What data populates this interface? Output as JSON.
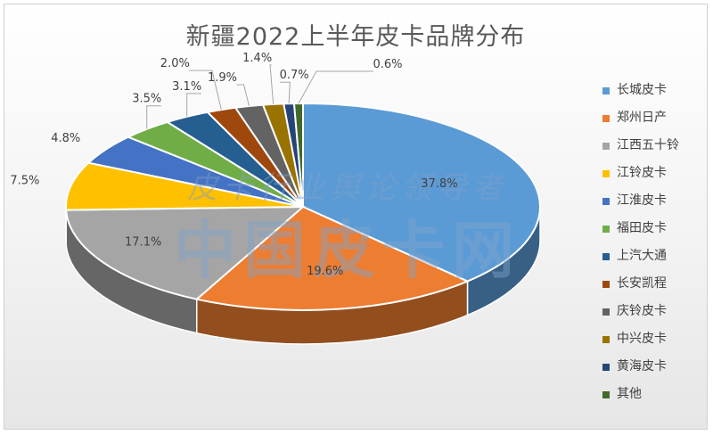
{
  "chart_data": {
    "type": "pie",
    "title": "新疆2022上半年皮卡品牌分布",
    "legend_position": "right",
    "series": [
      {
        "name": "长城皮卡",
        "value": 37.8,
        "label": "37.8%",
        "color": "#5b9bd5"
      },
      {
        "name": "郑州日产",
        "value": 19.6,
        "label": "19.6%",
        "color": "#ed7d31"
      },
      {
        "name": "江西五十铃",
        "value": 17.1,
        "label": "17.1%",
        "color": "#a5a5a5"
      },
      {
        "name": "江铃皮卡",
        "value": 7.5,
        "label": "7.5%",
        "color": "#ffc000"
      },
      {
        "name": "江淮皮卡",
        "value": 4.8,
        "label": "4.8%",
        "color": "#4472c4"
      },
      {
        "name": "福田皮卡",
        "value": 3.5,
        "label": "3.5%",
        "color": "#70ad47"
      },
      {
        "name": "上汽大通",
        "value": 3.1,
        "label": "3.1%",
        "color": "#255e91"
      },
      {
        "name": "长安凯程",
        "value": 2.0,
        "label": "2.0%",
        "color": "#9e480e"
      },
      {
        "name": "庆铃皮卡",
        "value": 1.9,
        "label": "1.9%",
        "color": "#636363"
      },
      {
        "name": "中兴皮卡",
        "value": 1.4,
        "label": "1.4%",
        "color": "#997300"
      },
      {
        "name": "黄海皮卡",
        "value": 0.7,
        "label": "0.7%",
        "color": "#264478"
      },
      {
        "name": "其他",
        "value": 0.6,
        "label": "0.6%",
        "color": "#43682b"
      }
    ]
  },
  "watermark": {
    "line1": "皮卡行业舆论领导者",
    "line2": "中国皮卡网"
  }
}
